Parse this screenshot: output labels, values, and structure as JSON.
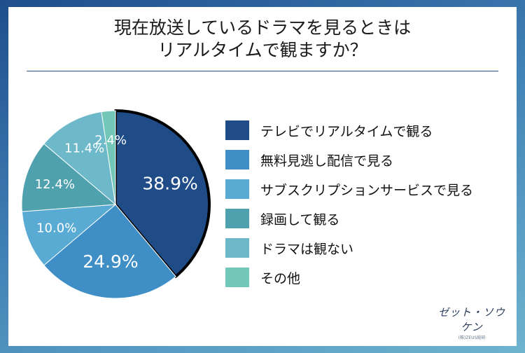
{
  "chart_data": {
    "type": "pie",
    "title_lines": [
      "現在放送しているドラマを見るときは",
      "リアルタイムで観ますか？"
    ],
    "slices": [
      {
        "label": "テレビでリアルタイムで観る",
        "value": 38.9,
        "display": "38.9%",
        "color": "#1f4b87",
        "highlight": true
      },
      {
        "label": "無料見逃し配信で見る",
        "value": 24.9,
        "display": "24.9%",
        "color": "#3f8fc6",
        "highlight": false
      },
      {
        "label": "サブスクリプションサービスで見る",
        "value": 10.0,
        "display": "10.0%",
        "color": "#5aabd3",
        "highlight": false
      },
      {
        "label": "録画して観る",
        "value": 12.4,
        "display": "12.4%",
        "color": "#4fa1ae",
        "highlight": false
      },
      {
        "label": "ドラマは観ない",
        "value": 11.4,
        "display": "11.4%",
        "color": "#6db8c9",
        "highlight": false
      },
      {
        "label": "その他",
        "value": 2.4,
        "display": "2.4%",
        "color": "#72c7b8",
        "highlight": false
      }
    ],
    "legend_position": "right"
  },
  "logo": {
    "text": "ゼット・ソウケン",
    "subtext": "(株)ZEUS総研"
  }
}
